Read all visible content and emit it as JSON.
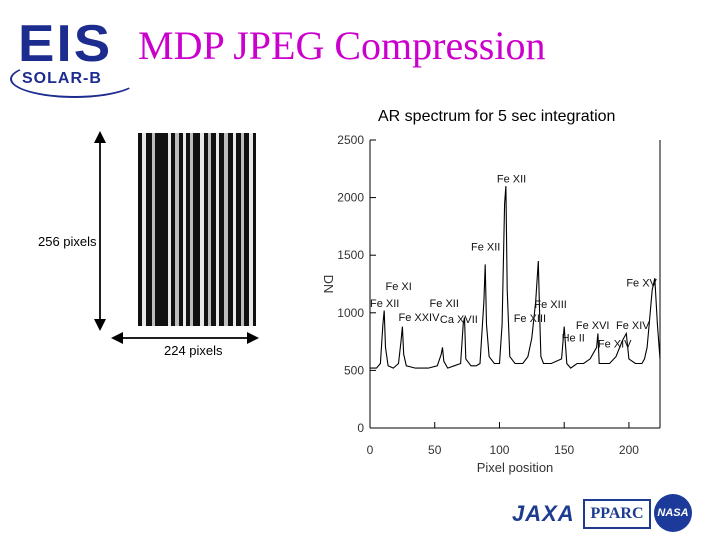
{
  "header": {
    "title": "MDP JPEG Compression",
    "logo_main": "EIS",
    "logo_sub": "SOLAR-B"
  },
  "image_panel": {
    "height_label": "256 pixels",
    "width_label": "224 pixels"
  },
  "chart_data": {
    "type": "line",
    "title": "AR spectrum for 5 sec integration",
    "xlabel": "Pixel position",
    "ylabel": "DN",
    "xlim": [
      0,
      224
    ],
    "ylim": [
      0,
      2500
    ],
    "xticks": [
      0,
      50,
      100,
      150,
      200
    ],
    "yticks": [
      0,
      500,
      1000,
      1500,
      2000,
      2500
    ],
    "x": [
      0,
      5,
      8,
      10,
      11,
      12,
      14,
      18,
      22,
      24,
      25,
      26,
      28,
      35,
      45,
      52,
      55,
      56,
      57,
      60,
      65,
      70,
      72,
      73,
      74,
      78,
      82,
      85,
      88,
      89,
      90,
      92,
      96,
      100,
      102,
      104,
      105,
      106,
      108,
      112,
      118,
      122,
      125,
      128,
      130,
      131,
      132,
      134,
      140,
      148,
      150,
      152,
      155,
      160,
      165,
      170,
      175,
      176,
      177,
      180,
      185,
      190,
      195,
      198,
      200,
      205,
      210,
      212,
      214,
      216,
      218,
      220,
      222,
      224
    ],
    "y": [
      520,
      520,
      560,
      900,
      1020,
      700,
      540,
      520,
      560,
      760,
      880,
      640,
      540,
      520,
      520,
      540,
      640,
      700,
      580,
      520,
      540,
      560,
      900,
      960,
      600,
      540,
      540,
      560,
      1100,
      1420,
      900,
      620,
      560,
      560,
      900,
      1950,
      2100,
      1200,
      620,
      560,
      560,
      620,
      780,
      1100,
      1450,
      1000,
      620,
      560,
      560,
      600,
      880,
      560,
      520,
      560,
      560,
      600,
      700,
      820,
      560,
      560,
      560,
      620,
      760,
      820,
      600,
      560,
      560,
      600,
      700,
      940,
      1200,
      1300,
      900,
      600
    ],
    "annotations": [
      {
        "text": "Fe XII",
        "x": 98,
        "y": 2130
      },
      {
        "text": "Fe XII",
        "x": 78,
        "y": 1540
      },
      {
        "text": "Fe XI",
        "x": 12,
        "y": 1200
      },
      {
        "text": "Fe XII",
        "x": 0,
        "y": 1050
      },
      {
        "text": "Fe XII",
        "x": 46,
        "y": 1050
      },
      {
        "text": "Fe XXIV",
        "x": 22,
        "y": 930
      },
      {
        "text": "Ca XVII",
        "x": 54,
        "y": 910
      },
      {
        "text": "Fe XIII",
        "x": 127,
        "y": 1040
      },
      {
        "text": "Fe XIII",
        "x": 111,
        "y": 920
      },
      {
        "text": "He II",
        "x": 148,
        "y": 750
      },
      {
        "text": "Fe XVI",
        "x": 159,
        "y": 860
      },
      {
        "text": "Fe XIV",
        "x": 190,
        "y": 860
      },
      {
        "text": "Fe XIV",
        "x": 176,
        "y": 700
      },
      {
        "text": "Fe XV",
        "x": 198,
        "y": 1230
      }
    ]
  },
  "footer": {
    "logo_jaxa": "JAXA",
    "logo_pparc": "PPARC",
    "logo_nasa": "NASA"
  },
  "colors": {
    "title": "#cc00cc",
    "brand": "#1d2c8f"
  }
}
